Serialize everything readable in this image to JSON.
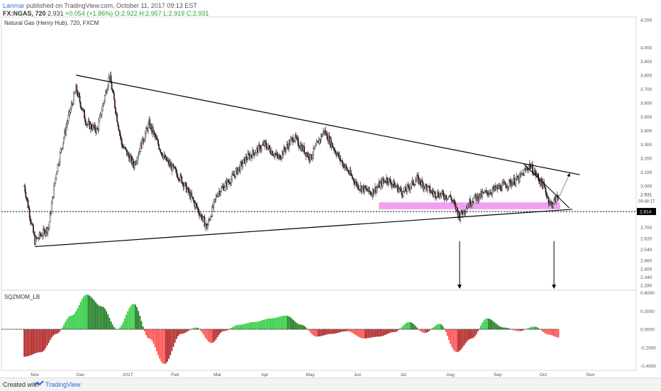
{
  "header": {
    "author": "Lanmar",
    "published_text": "published on TradingView.com, October 11, 2017 09:13 EST",
    "symbol_line": "FX:NGAS, 720",
    "last": "2.931",
    "change": "+0.054 (+1.86%)",
    "open": "O:2.922",
    "high": "H:2.957",
    "low": "L:2.919",
    "close": "C:2.931"
  },
  "main_pane": {
    "title": "Natural Gas (Henry Hub), 720, FXCM"
  },
  "osc_pane": {
    "title": "SQZMOM_LB"
  },
  "footer": {
    "created": "Created with",
    "brand": "TradingView"
  },
  "colors": {
    "up": "#2e9e2e",
    "down": "#e03c3c",
    "zone": "#ee82ee",
    "line": "#000000"
  },
  "chart_data": [
    {
      "type": "candlestick",
      "title": "Natural Gas (Henry Hub), 720, FXCM",
      "x_tick_labels": [
        "Nov",
        "Dec",
        "2017",
        "Feb",
        "Mar",
        "Apr",
        "May",
        "Jun",
        "Jul",
        "Aug",
        "Sep",
        "Oct",
        "Nov"
      ],
      "y_tick_labels": [
        "4.200",
        "4.000",
        "3.900",
        "3.800",
        "3.700",
        "3.600",
        "3.500",
        "3.400",
        "3.300",
        "3.200",
        "3.100",
        "3.000",
        "2.931",
        "2.814",
        "2.700",
        "2.620",
        "2.540",
        "2.460",
        "2.400",
        "2.340",
        "2.280"
      ],
      "ylim": [
        2.25,
        4.22
      ],
      "price_close_path": {
        "x": [
          "2016-10-25",
          "2016-11-01",
          "2016-11-10",
          "2016-11-15",
          "2016-11-22",
          "2016-11-28",
          "2016-12-05",
          "2016-12-12",
          "2016-12-20",
          "2016-12-28",
          "2017-01-05",
          "2017-01-15",
          "2017-01-25",
          "2017-02-05",
          "2017-02-15",
          "2017-02-22",
          "2017-03-01",
          "2017-03-10",
          "2017-03-20",
          "2017-04-01",
          "2017-04-10",
          "2017-04-20",
          "2017-05-01",
          "2017-05-10",
          "2017-05-20",
          "2017-06-01",
          "2017-06-10",
          "2017-06-20",
          "2017-07-01",
          "2017-07-10",
          "2017-07-20",
          "2017-08-01",
          "2017-08-07",
          "2017-08-15",
          "2017-08-25",
          "2017-09-05",
          "2017-09-15",
          "2017-09-22",
          "2017-10-01",
          "2017-10-06",
          "2017-10-11"
        ],
        "y": [
          3.0,
          2.6,
          2.7,
          3.1,
          3.45,
          3.7,
          3.45,
          3.4,
          3.8,
          3.3,
          3.15,
          3.45,
          3.2,
          3.05,
          2.85,
          2.7,
          2.95,
          3.05,
          3.2,
          3.3,
          3.2,
          3.35,
          3.2,
          3.4,
          3.2,
          3.0,
          2.95,
          3.05,
          2.95,
          3.05,
          2.95,
          2.92,
          2.78,
          2.9,
          2.95,
          3.0,
          3.05,
          3.15,
          3.0,
          2.86,
          2.931
        ]
      },
      "last_price": "2.931",
      "countdown": "06:48:17",
      "support_level": "2.814",
      "annotations": [
        {
          "kind": "trendline",
          "label": "upper descending",
          "from": [
            "2016-11-28",
            3.8
          ],
          "to": [
            "2017-10-25",
            3.08
          ]
        },
        {
          "kind": "trendline",
          "label": "lower ascending",
          "from": [
            "2016-11-01",
            2.56
          ],
          "to": [
            "2017-10-20",
            2.83
          ]
        },
        {
          "kind": "zone",
          "label": "support zone",
          "from": "2017-06-15",
          "to": "2017-10-12",
          "y_range": [
            2.83,
            2.88
          ]
        },
        {
          "kind": "horizontal",
          "label": "support",
          "y": 2.814
        },
        {
          "kind": "arrow",
          "direction": "down",
          "at": "2017-08-07"
        },
        {
          "kind": "arrow",
          "direction": "down",
          "at": "2017-10-08"
        }
      ]
    },
    {
      "type": "bar",
      "title": "SQZMOM_LB",
      "y_tick_labels": [
        "0.4000",
        "0.2000",
        "0.0000",
        "-0.2000",
        "-0.4000"
      ],
      "ylim": [
        -0.45,
        0.42
      ],
      "series_shape": {
        "x": [
          "2016-10-25",
          "2016-11-05",
          "2016-11-15",
          "2016-11-25",
          "2016-12-05",
          "2016-12-15",
          "2016-12-25",
          "2017-01-05",
          "2017-01-15",
          "2017-01-25",
          "2017-02-05",
          "2017-02-15",
          "2017-02-25",
          "2017-03-05",
          "2017-03-15",
          "2017-03-25",
          "2017-04-05",
          "2017-04-15",
          "2017-04-25",
          "2017-05-05",
          "2017-05-15",
          "2017-05-25",
          "2017-06-05",
          "2017-06-15",
          "2017-06-25",
          "2017-07-05",
          "2017-07-15",
          "2017-07-25",
          "2017-08-05",
          "2017-08-15",
          "2017-08-25",
          "2017-09-05",
          "2017-09-15",
          "2017-09-25",
          "2017-10-05",
          "2017-10-11"
        ],
        "values": [
          -0.3,
          -0.25,
          -0.05,
          0.15,
          0.38,
          0.25,
          0.0,
          0.28,
          -0.1,
          -0.38,
          -0.05,
          0.02,
          -0.15,
          -0.02,
          0.05,
          0.08,
          0.12,
          0.15,
          0.05,
          -0.08,
          -0.05,
          -0.02,
          -0.1,
          -0.08,
          -0.03,
          0.08,
          -0.04,
          0.06,
          -0.25,
          -0.1,
          0.12,
          0.02,
          -0.02,
          0.03,
          -0.06,
          -0.09
        ]
      },
      "colors": {
        "positive": "#2e9e2e",
        "negative": "#e03c3c"
      }
    }
  ]
}
